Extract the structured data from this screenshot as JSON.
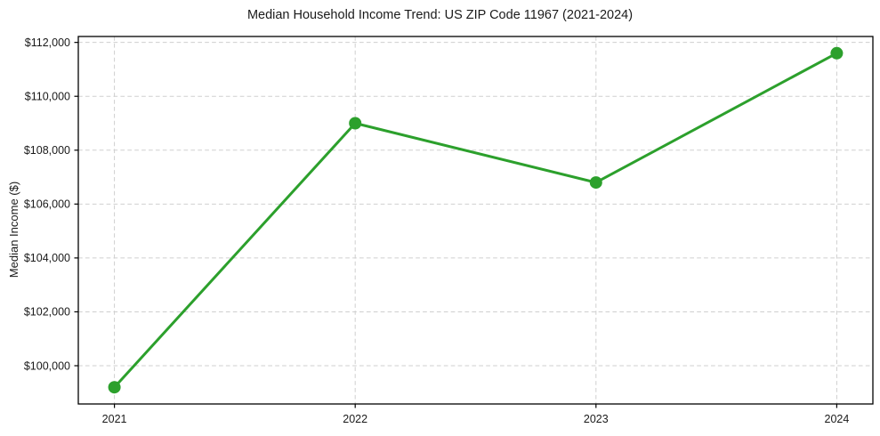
{
  "chart_data": {
    "type": "line",
    "title": "Median Household Income Trend: US ZIP Code 11967 (2021-2024)",
    "xlabel": "",
    "ylabel": "Median Income ($)",
    "x": [
      2021,
      2022,
      2023,
      2024
    ],
    "x_tick_labels": [
      "2021",
      "2022",
      "2023",
      "2024"
    ],
    "values": [
      99200,
      109000,
      106800,
      111600
    ],
    "y_ticks": [
      {
        "value": 100000,
        "label": "$100,000"
      },
      {
        "value": 102000,
        "label": "$102,000"
      },
      {
        "value": 104000,
        "label": "$104,000"
      },
      {
        "value": 106000,
        "label": "$106,000"
      },
      {
        "value": 108000,
        "label": "$108,000"
      },
      {
        "value": 110000,
        "label": "$110,000"
      },
      {
        "value": 112000,
        "label": "$112,000"
      }
    ],
    "xlim": [
      2020.85,
      2024.15
    ],
    "ylim": [
      98580,
      112220
    ],
    "grid": {
      "visible": true,
      "style": "dashed",
      "color": "#cfcfcf"
    },
    "legend_visible": false,
    "line_color": "#2ca02c",
    "marker": {
      "shape": "circle",
      "color": "#2ca02c",
      "radius": 7
    },
    "line_width": 3,
    "text_color": "#1a1a1a",
    "spine_color": "#000000",
    "background_color": "#ffffff"
  }
}
